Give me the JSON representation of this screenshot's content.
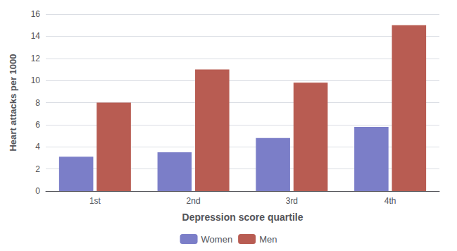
{
  "chart_data": {
    "type": "bar",
    "xlabel": "Depression score quartile",
    "ylabel": "Heart attacks per 1000",
    "categories": [
      "1st",
      "2nd",
      "3rd",
      "4th"
    ],
    "series": [
      {
        "name": "Women",
        "color": "#7b7ec8",
        "values": [
          3.1,
          3.5,
          4.8,
          5.8
        ]
      },
      {
        "name": "Men",
        "color": "#b85c52",
        "values": [
          8.0,
          11.0,
          9.8,
          15.0
        ]
      }
    ],
    "ylim": [
      0,
      16
    ],
    "yticks": [
      0,
      2,
      4,
      6,
      8,
      10,
      12,
      14,
      16
    ],
    "grid": true,
    "legend": "bottom"
  }
}
